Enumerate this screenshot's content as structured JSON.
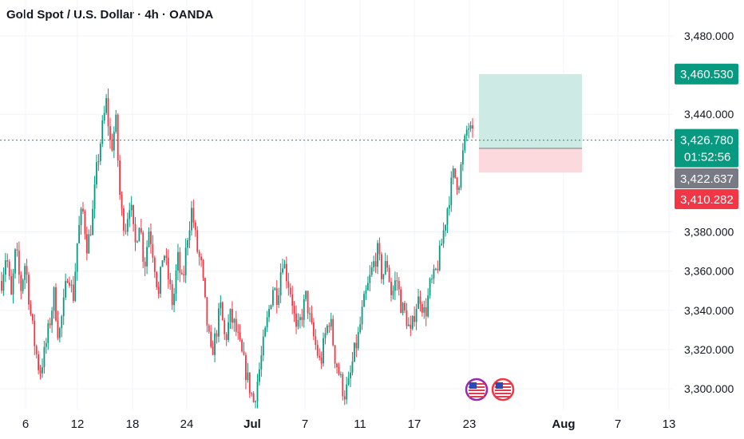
{
  "header": {
    "title": "Gold Spot / U.S. Dollar · 4h · OANDA"
  },
  "colors": {
    "up": "#089981",
    "down": "#f23645",
    "current_line": "#089981",
    "tp_zone": "#cdebe4",
    "sl_zone": "#fcd9dc",
    "gray_tag": "#787b86"
  },
  "chart_data": {
    "type": "candlestick",
    "title": "Gold Spot / U.S. Dollar · 4h · OANDA",
    "y_ticks": [
      "3,480.000",
      "3,440.000",
      "3,380.000",
      "3,360.000",
      "3,340.000",
      "3,320.000",
      "3,300.000"
    ],
    "y_tick_values": [
      3480,
      3440,
      3380,
      3360,
      3340,
      3320,
      3300
    ],
    "ylim": [
      3289,
      3494
    ],
    "x_ticks": [
      "6",
      "12",
      "18",
      "24",
      "Jul",
      "7",
      "11",
      "17",
      "23",
      "Aug",
      "7",
      "13"
    ],
    "price_tags": {
      "take_profit": {
        "value": 3460.53,
        "text": "3,460.530",
        "color": "#089981"
      },
      "current": {
        "value": 3426.78,
        "text": "3,426.780",
        "countdown": "01:52:56",
        "color": "#089981"
      },
      "entry": {
        "value": 3422.637,
        "text": "3,422.637",
        "color": "#787b86"
      },
      "stop_loss": {
        "value": 3410.282,
        "text": "3,410.282",
        "color": "#f23645"
      }
    },
    "position": {
      "take_profit": 3460.53,
      "entry": 3422.637,
      "stop_loss": 3410.282
    },
    "close_path": [
      3355,
      3370,
      3345,
      3372,
      3350,
      3365,
      3340,
      3322,
      3308,
      3318,
      3332,
      3348,
      3326,
      3342,
      3362,
      3345,
      3378,
      3392,
      3372,
      3386,
      3412,
      3430,
      3446,
      3421,
      3437,
      3392,
      3382,
      3397,
      3372,
      3387,
      3362,
      3382,
      3367,
      3347,
      3372,
      3357,
      3342,
      3367,
      3352,
      3377,
      3392,
      3372,
      3362,
      3337,
      3317,
      3327,
      3342,
      3324,
      3337,
      3332,
      3322,
      3312,
      3302,
      3293,
      3307,
      3322,
      3337,
      3352,
      3347,
      3367,
      3357,
      3347,
      3327,
      3337,
      3347,
      3332,
      3322,
      3312,
      3327,
      3337,
      3317,
      3307,
      3297,
      3302,
      3317,
      3327,
      3342,
      3352,
      3362,
      3370,
      3357,
      3365,
      3347,
      3357,
      3342,
      3337,
      3327,
      3342,
      3347,
      3337,
      3352,
      3357,
      3367,
      3382,
      3397,
      3410,
      3404,
      3420,
      3435,
      3428
    ]
  }
}
